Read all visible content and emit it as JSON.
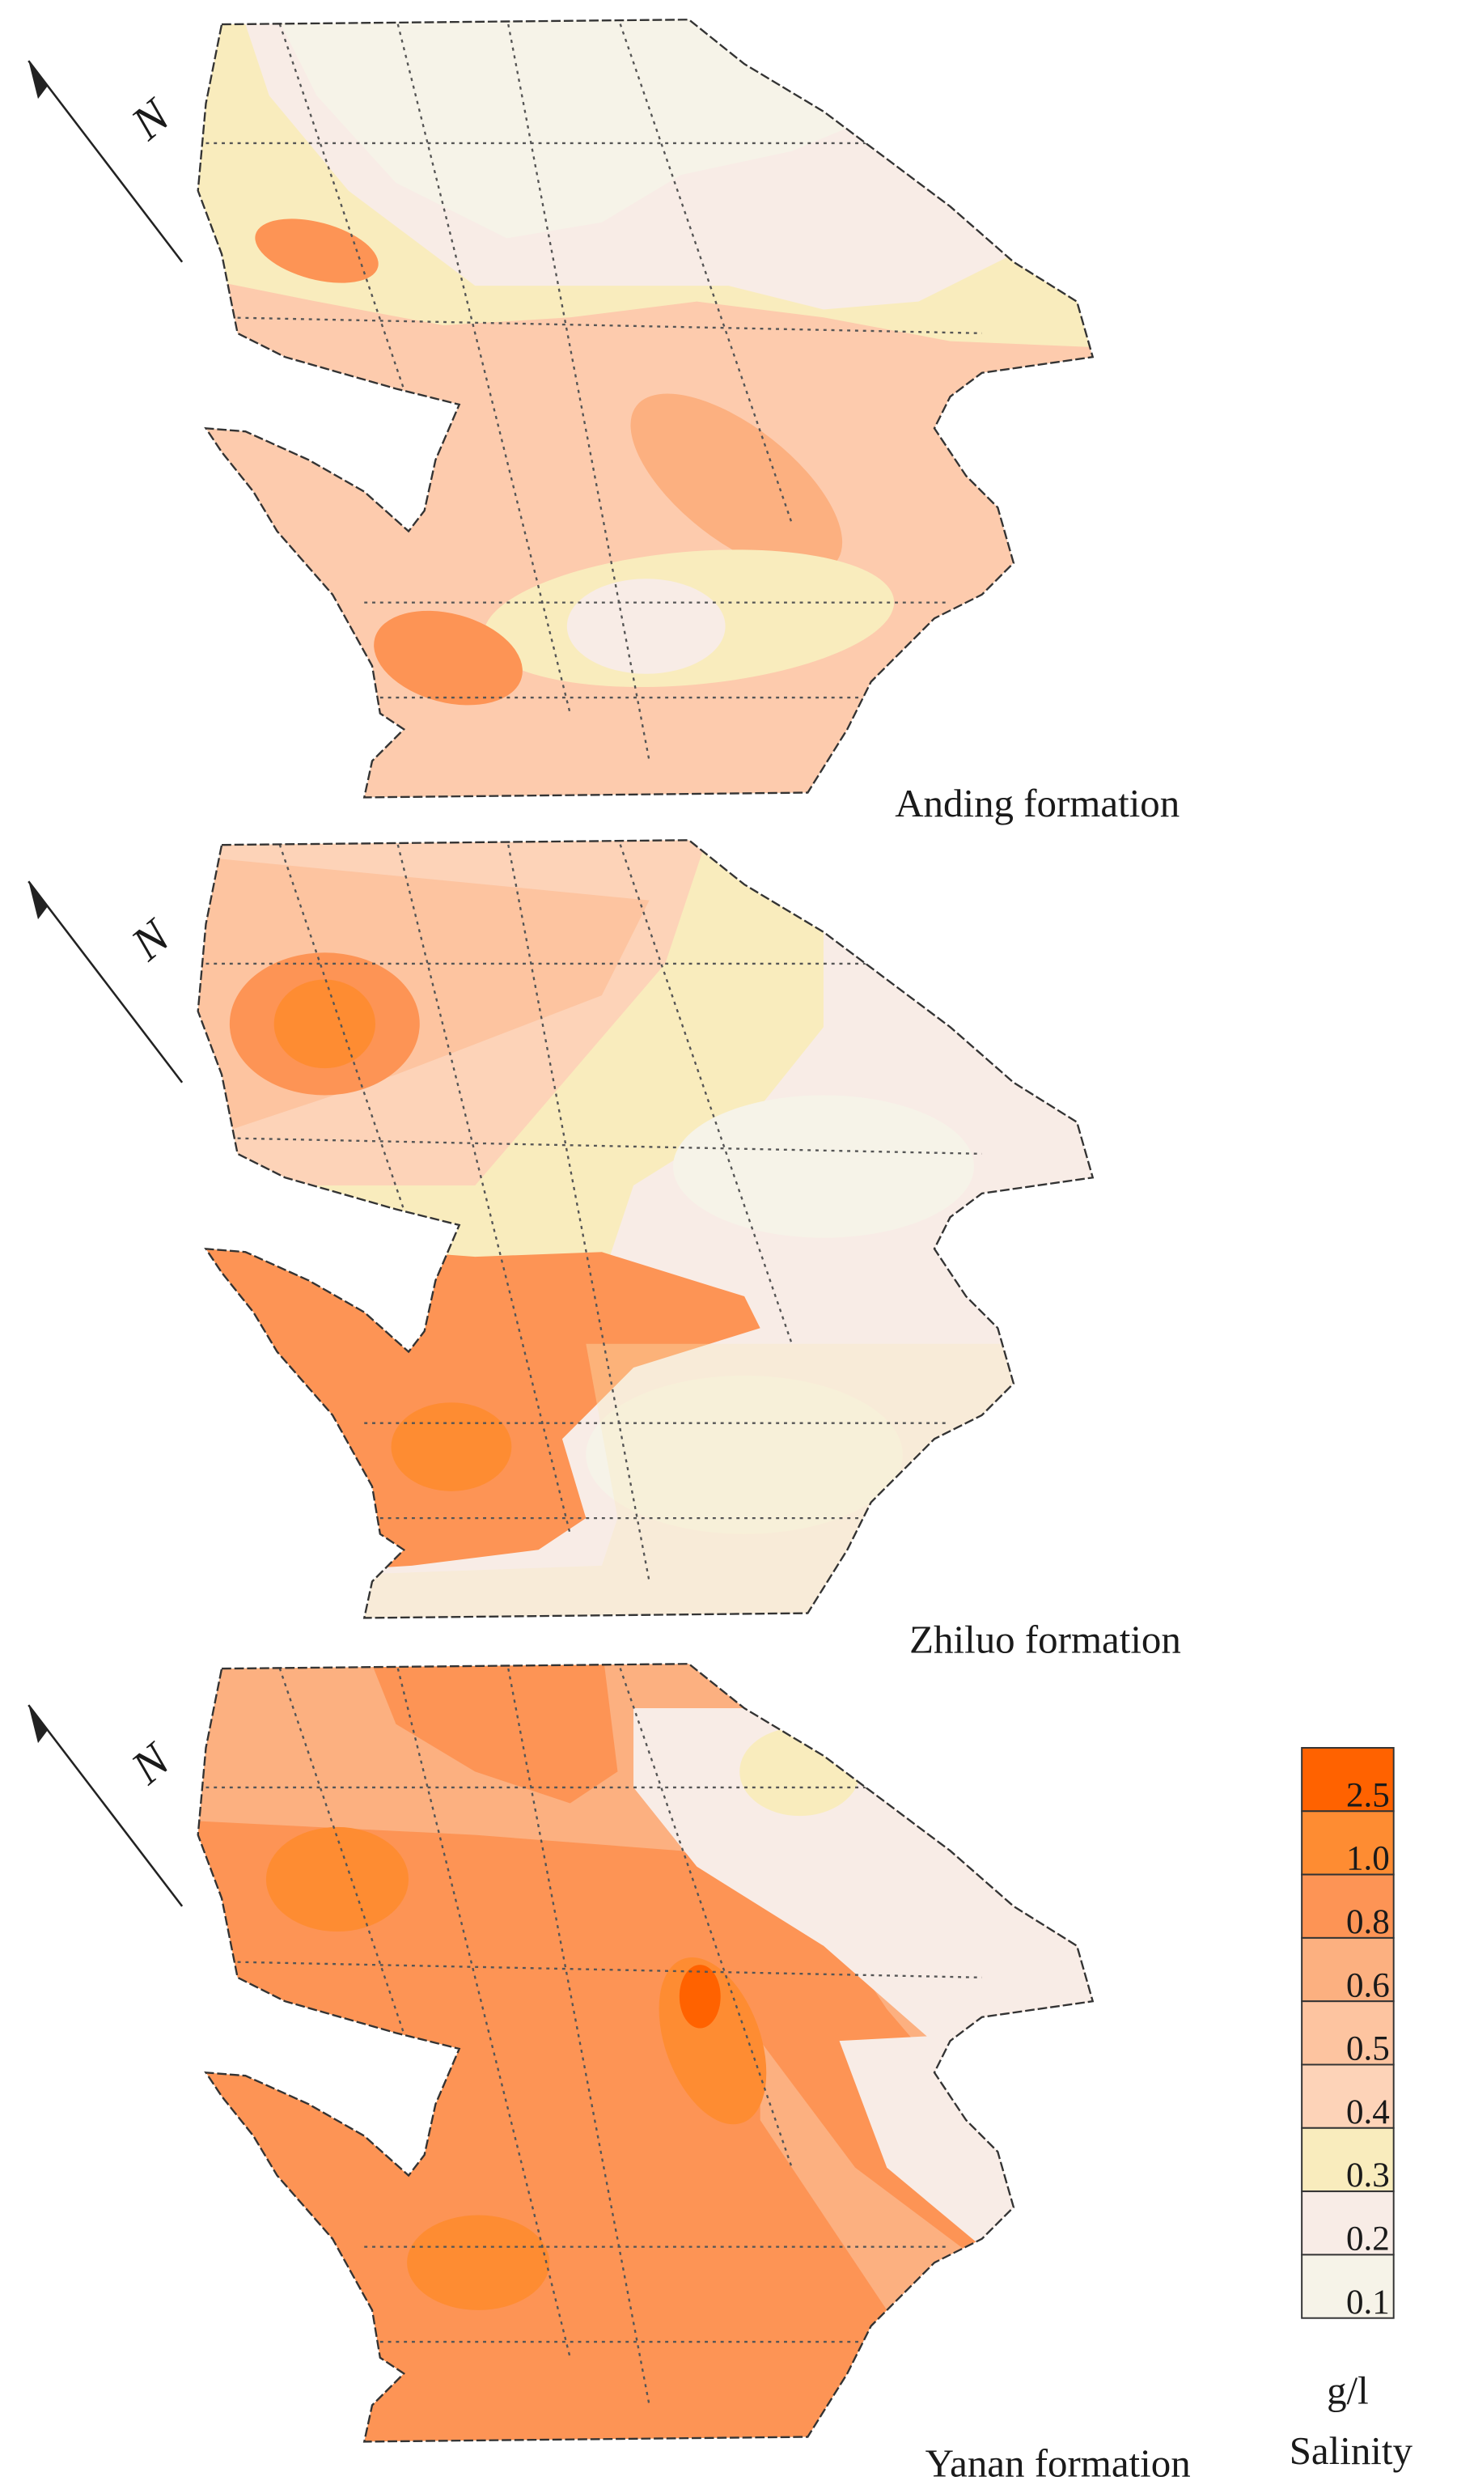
{
  "panels": [
    {
      "label": "Anding formation",
      "north": "N"
    },
    {
      "label": "Zhiluo formation",
      "north": "N"
    },
    {
      "label": "Yanan formation",
      "north": "N"
    }
  ],
  "legend": {
    "items": [
      {
        "label": "2.5",
        "color": "#ff6200"
      },
      {
        "label": "1.0",
        "color": "#fe8c32"
      },
      {
        "label": "0.8",
        "color": "#fd9455"
      },
      {
        "label": "0.6",
        "color": "#fcb080"
      },
      {
        "label": "0.5",
        "color": "#fdc4a0"
      },
      {
        "label": "0.4",
        "color": "#fdd3b8"
      },
      {
        "label": "0.3",
        "color": "#f9ecbd"
      },
      {
        "label": "0.2",
        "color": "#f8ece6"
      },
      {
        "label": "0.1",
        "color": "#f6f3e8"
      }
    ],
    "unit": "g/l",
    "title": "Salinity"
  }
}
